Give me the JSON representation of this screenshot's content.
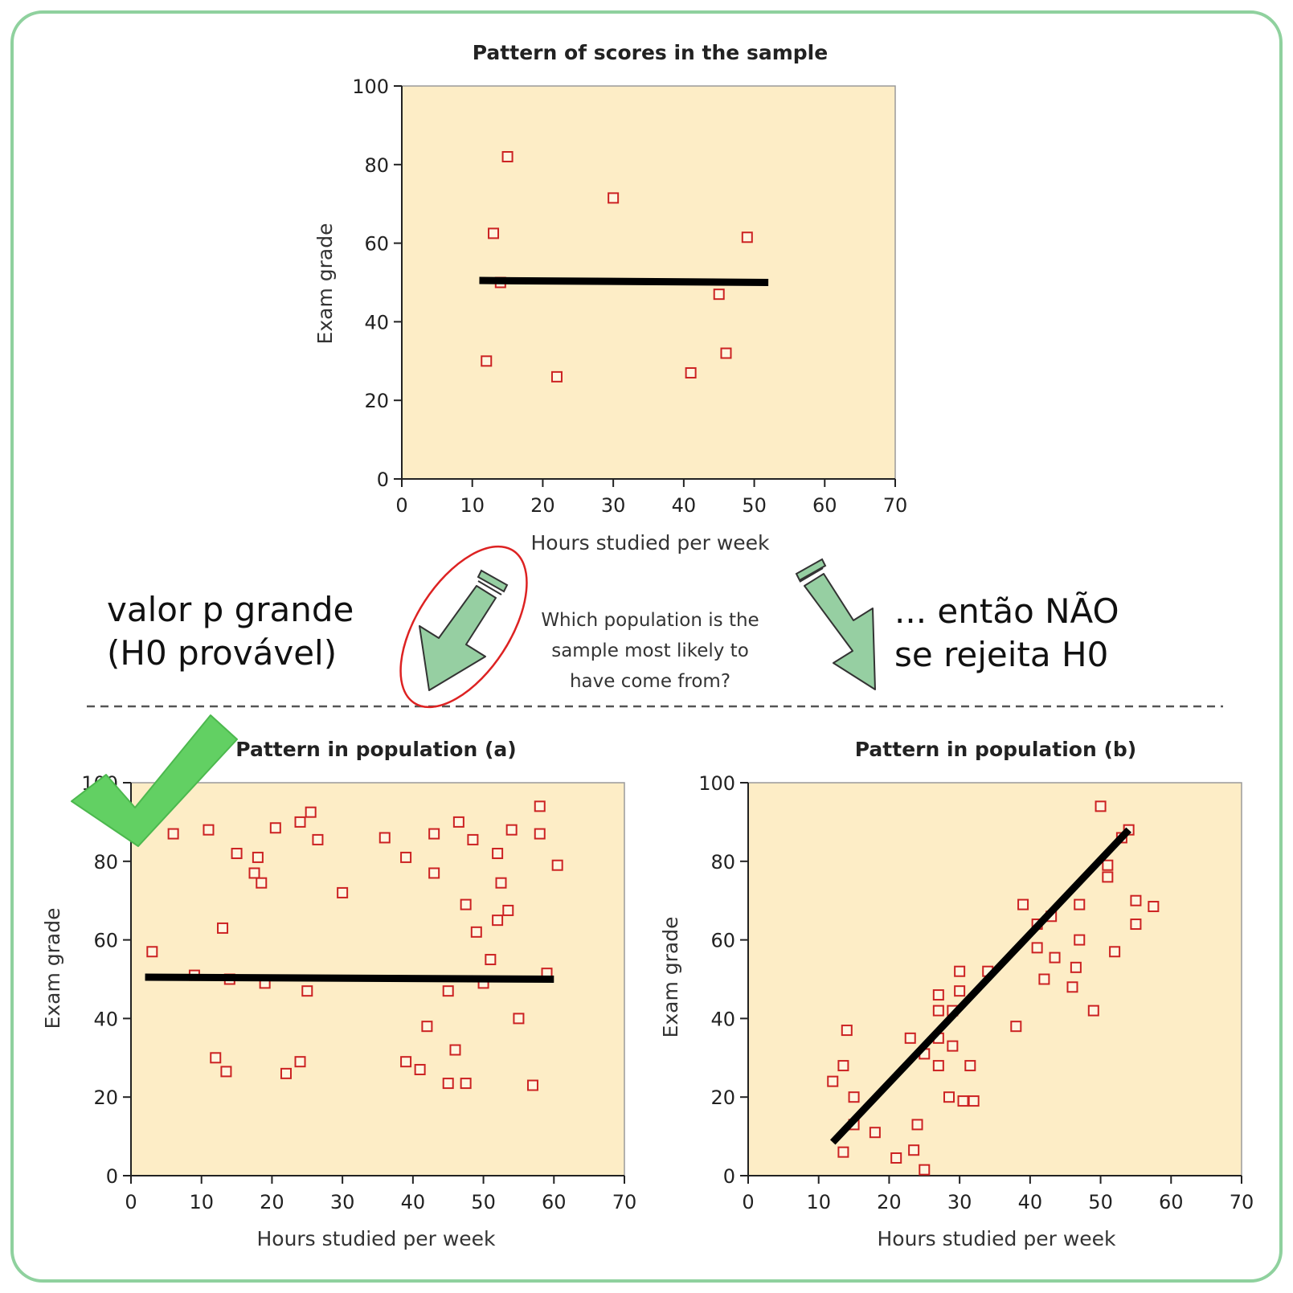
{
  "colors": {
    "plot_bg": "#fdedc6",
    "marker": "#cc2222",
    "trend_line": "#000000",
    "arrow_fill": "#96cfa2",
    "checkmark": "#62d063",
    "frame": "#8fd19e",
    "ellipse": "#dd2222"
  },
  "annotations": {
    "left_note": [
      "valor p grande",
      "(H0 provável)"
    ],
    "right_note": [
      "... então NÃO",
      "se rejeita H0"
    ],
    "question": [
      "Which population is the",
      "sample most likely to",
      "have come from?"
    ]
  },
  "icons": [
    "arrow-down-left-icon",
    "arrow-down-right-icon",
    "checkmark-icon"
  ],
  "chart_data": [
    {
      "id": "sample",
      "type": "scatter",
      "title": "Pattern of scores in the sample",
      "xlabel": "Hours studied per week",
      "ylabel": "Exam grade",
      "xlim": [
        0,
        70
      ],
      "ylim": [
        0,
        100
      ],
      "xticks": [
        0,
        10,
        20,
        30,
        40,
        50,
        60,
        70
      ],
      "yticks": [
        0,
        20,
        40,
        60,
        80,
        100
      ],
      "points": [
        [
          15,
          82
        ],
        [
          30,
          71.5
        ],
        [
          13,
          62.5
        ],
        [
          49,
          61.5
        ],
        [
          14,
          50
        ],
        [
          45,
          47
        ],
        [
          46,
          32
        ],
        [
          12,
          30
        ],
        [
          22,
          26
        ],
        [
          41,
          27
        ]
      ],
      "trend_line": [
        [
          11,
          50.5
        ],
        [
          52,
          50
        ]
      ]
    },
    {
      "id": "population-a",
      "type": "scatter",
      "title": "Pattern in population (a)",
      "xlabel": "Hours studied per week",
      "ylabel": "Exam grade",
      "xlim": [
        0,
        70
      ],
      "ylim": [
        0,
        100
      ],
      "xticks": [
        0,
        10,
        20,
        30,
        40,
        50,
        60,
        70
      ],
      "yticks": [
        0,
        20,
        40,
        60,
        80,
        100
      ],
      "points": [
        [
          6,
          87
        ],
        [
          11,
          88
        ],
        [
          20.5,
          88.5
        ],
        [
          24,
          90
        ],
        [
          25.5,
          92.5
        ],
        [
          26.5,
          85.5
        ],
        [
          15,
          82
        ],
        [
          18,
          81
        ],
        [
          17.5,
          77
        ],
        [
          18.5,
          74.5
        ],
        [
          30,
          72
        ],
        [
          36,
          86
        ],
        [
          39,
          81
        ],
        [
          43,
          87
        ],
        [
          43,
          77
        ],
        [
          46.5,
          90
        ],
        [
          48.5,
          85.5
        ],
        [
          47.5,
          69
        ],
        [
          49,
          62
        ],
        [
          51,
          55
        ],
        [
          52,
          82
        ],
        [
          54,
          88
        ],
        [
          52.5,
          74.5
        ],
        [
          52,
          65
        ],
        [
          53.5,
          67.5
        ],
        [
          58,
          94
        ],
        [
          58,
          87
        ],
        [
          60.5,
          79
        ],
        [
          3,
          57
        ],
        [
          13,
          63
        ],
        [
          9,
          51
        ],
        [
          14,
          50
        ],
        [
          19,
          49
        ],
        [
          25,
          47
        ],
        [
          59,
          51.5
        ],
        [
          50,
          49
        ],
        [
          45,
          47
        ],
        [
          42,
          38
        ],
        [
          55,
          40
        ],
        [
          12,
          30
        ],
        [
          13.5,
          26.5
        ],
        [
          22,
          26
        ],
        [
          24,
          29
        ],
        [
          39,
          29
        ],
        [
          41,
          27
        ],
        [
          46,
          32
        ],
        [
          45,
          23.5
        ],
        [
          47.5,
          23.5
        ],
        [
          57,
          23
        ]
      ],
      "trend_line": [
        [
          2,
          50.5
        ],
        [
          60,
          50
        ]
      ]
    },
    {
      "id": "population-b",
      "type": "scatter",
      "title": "Pattern in population (b)",
      "xlabel": "Hours studied per week",
      "ylabel": "Exam grade",
      "xlim": [
        0,
        70
      ],
      "ylim": [
        0,
        100
      ],
      "xticks": [
        0,
        10,
        20,
        30,
        40,
        50,
        60,
        70
      ],
      "yticks": [
        0,
        20,
        40,
        60,
        80,
        100
      ],
      "points": [
        [
          50,
          94
        ],
        [
          54,
          88
        ],
        [
          53,
          86
        ],
        [
          51,
          79
        ],
        [
          51,
          76
        ],
        [
          55,
          70
        ],
        [
          57.5,
          68.5
        ],
        [
          39,
          69
        ],
        [
          47,
          69
        ],
        [
          43,
          66
        ],
        [
          41,
          64
        ],
        [
          55,
          64
        ],
        [
          47,
          60
        ],
        [
          41,
          58
        ],
        [
          52,
          57
        ],
        [
          43.5,
          55.5
        ],
        [
          46.5,
          53
        ],
        [
          34,
          52
        ],
        [
          30,
          52
        ],
        [
          42,
          50
        ],
        [
          46,
          48
        ],
        [
          30,
          47
        ],
        [
          27,
          46
        ],
        [
          27,
          42
        ],
        [
          29,
          42
        ],
        [
          49,
          42
        ],
        [
          38,
          38
        ],
        [
          14,
          37
        ],
        [
          23,
          35
        ],
        [
          27,
          35
        ],
        [
          29,
          33
        ],
        [
          25,
          31
        ],
        [
          13.5,
          28
        ],
        [
          27,
          28
        ],
        [
          31.5,
          28
        ],
        [
          12,
          24
        ],
        [
          15,
          20
        ],
        [
          28.5,
          20
        ],
        [
          30.5,
          19
        ],
        [
          32,
          19
        ],
        [
          15,
          13
        ],
        [
          24,
          13
        ],
        [
          18,
          11
        ],
        [
          13.5,
          6
        ],
        [
          23.5,
          6.5
        ],
        [
          21,
          4.5
        ],
        [
          25,
          1.5
        ]
      ],
      "trend_line": [
        [
          12,
          8.5
        ],
        [
          54,
          88
        ]
      ]
    }
  ]
}
